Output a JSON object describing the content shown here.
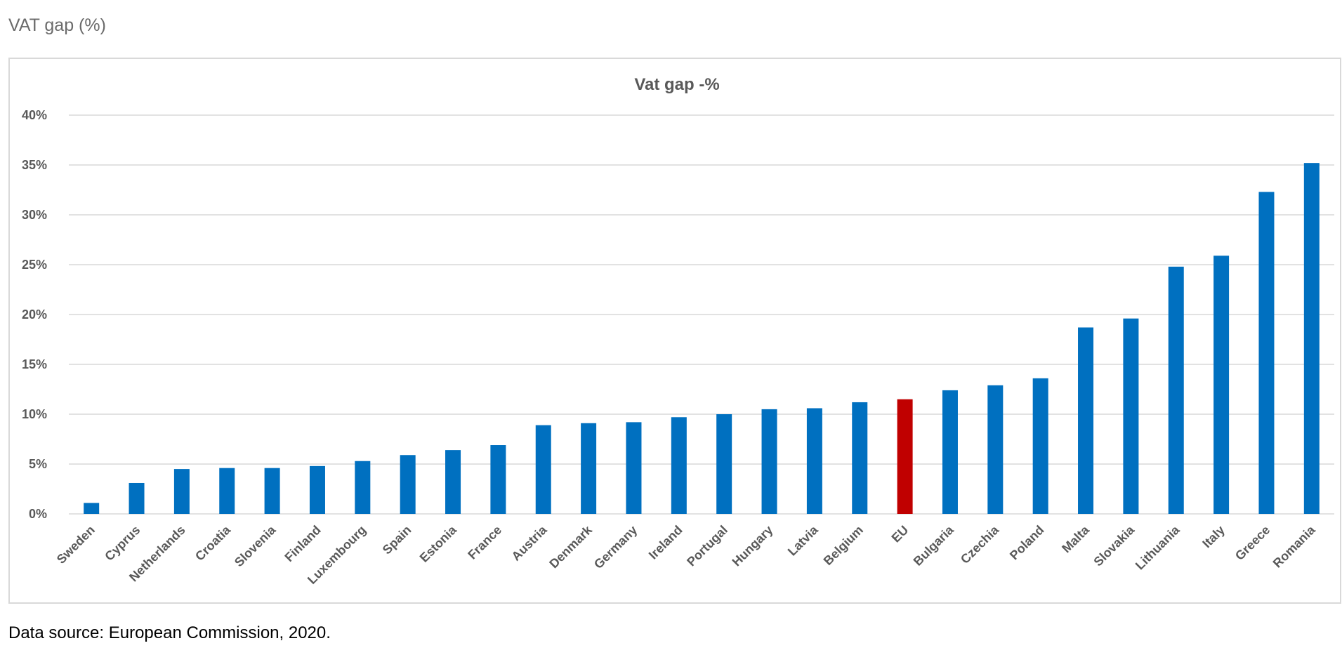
{
  "heading": "VAT gap (%)",
  "source": "Data source: European Commission, 2020.",
  "colors": {
    "bar": "#0070c0",
    "highlight": "#c00000",
    "grid": "#d9d9d9",
    "text": "#595959"
  },
  "chart_data": {
    "type": "bar",
    "title": "Vat gap -%",
    "xlabel": "",
    "ylabel": "",
    "ylim": [
      0,
      40
    ],
    "yticks": [
      "0%",
      "5%",
      "10%",
      "15%",
      "20%",
      "25%",
      "30%",
      "35%",
      "40%"
    ],
    "grid": true,
    "legend": "none",
    "categories": [
      "Sweden",
      "Cyprus",
      "Netherlands",
      "Croatia",
      "Slovenia",
      "Finland",
      "Luxembourg",
      "Spain",
      "Estonia",
      "France",
      "Austria",
      "Denmark",
      "Germany",
      "Ireland",
      "Portugal",
      "Hungary",
      "Latvia",
      "Belgium",
      "EU",
      "Bulgaria",
      "Czechia",
      "Poland",
      "Malta",
      "Slovakia",
      "Lithuania",
      "Italy",
      "Greece",
      "Romania"
    ],
    "values": [
      1.1,
      3.1,
      4.5,
      4.6,
      4.6,
      4.8,
      5.3,
      5.9,
      6.4,
      6.9,
      8.9,
      9.1,
      9.2,
      9.7,
      10.0,
      10.5,
      10.6,
      11.2,
      11.5,
      12.4,
      12.9,
      13.6,
      18.7,
      19.6,
      24.8,
      25.9,
      32.3,
      35.2
    ],
    "highlight": [
      "EU"
    ]
  }
}
